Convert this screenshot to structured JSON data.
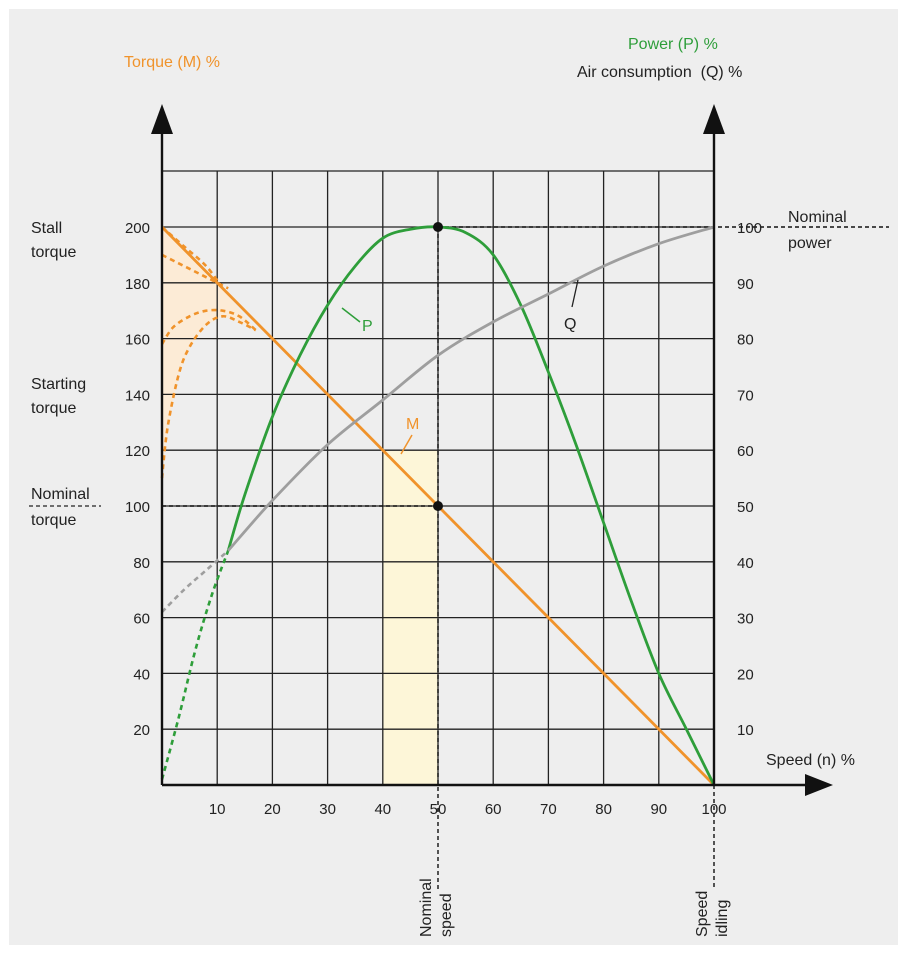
{
  "chart_data": {
    "type": "line",
    "title": "",
    "xlabel": "Speed (n) %",
    "ylabel_left": "Torque (M) %",
    "ylabel_right_1": "Power (P) %",
    "ylabel_right_2": "Air consumption  (Q) %",
    "xlim": [
      0,
      100
    ],
    "ylim_left": [
      0,
      200
    ],
    "ylim_right": [
      0,
      100
    ],
    "x_ticks": [
      10,
      20,
      30,
      40,
      50,
      60,
      70,
      80,
      90,
      100
    ],
    "y_left_ticks": [
      20,
      40,
      60,
      80,
      100,
      120,
      140,
      160,
      180,
      200
    ],
    "y_right_ticks": [
      10,
      20,
      30,
      40,
      50,
      60,
      70,
      80,
      90,
      100
    ],
    "grid": true,
    "colors": {
      "torque": "#f0932b",
      "power": "#2e9e3a",
      "air": "#9e9e9e",
      "points": "#111111",
      "axis": "#111111",
      "stall_band": "#fcebd6",
      "nominal_band": "#fdf6d8",
      "left_label": "#f0932b",
      "power_label": "#2e9e3a"
    },
    "series": [
      {
        "name": "M",
        "axis": "left",
        "x": [
          0,
          100
        ],
        "y": [
          200,
          0
        ]
      },
      {
        "name": "P",
        "axis": "right",
        "x": [
          12,
          15,
          20,
          25,
          30,
          35,
          40,
          45,
          50,
          55,
          60,
          65,
          70,
          75,
          80,
          85,
          90,
          95,
          100
        ],
        "y": [
          42,
          52,
          66,
          77,
          86,
          93,
          98,
          99.6,
          100,
          99,
          95,
          86,
          74,
          61,
          47,
          33,
          20,
          10,
          0
        ]
      },
      {
        "name": "Q",
        "axis": "right",
        "x": [
          12,
          20,
          30,
          40,
          50,
          60,
          70,
          80,
          90,
          100
        ],
        "y": [
          42,
          51,
          61,
          69,
          77,
          83,
          88,
          93,
          97,
          100
        ]
      }
    ],
    "dashed_segments": [
      {
        "series": "P",
        "x": [
          0,
          3,
          6,
          9,
          12
        ],
        "y": [
          1,
          12,
          24,
          34,
          42
        ]
      },
      {
        "series": "Q",
        "x": [
          0,
          4,
          8,
          12
        ],
        "y": [
          31,
          35,
          38.5,
          42
        ]
      },
      {
        "series": "M",
        "x": [
          0,
          4,
          8,
          11
        ],
        "y": [
          200,
          193,
          186,
          178
        ]
      },
      {
        "series": "M",
        "x": [
          0,
          3,
          6,
          9,
          12
        ],
        "y": [
          190,
          187,
          184,
          181,
          178
        ]
      },
      {
        "series": "M",
        "x": [
          0,
          2,
          5,
          8,
          11,
          14,
          17
        ],
        "y": [
          158,
          164,
          168,
          170,
          170,
          168,
          163
        ]
      },
      {
        "series": "M",
        "x": [
          0,
          1,
          3,
          5,
          8,
          11,
          14,
          17
        ],
        "y": [
          110,
          128,
          147,
          157,
          165,
          168,
          166,
          163
        ]
      }
    ],
    "points": [
      {
        "x": 50,
        "y": 100,
        "axis": "right",
        "label": ""
      },
      {
        "x": 50,
        "y": 100,
        "axis": "left",
        "label": ""
      }
    ],
    "annotations": {
      "series_labels": {
        "P": "P",
        "Q": "Q",
        "M": "M"
      },
      "stall_torque": [
        "Stall",
        "torque"
      ],
      "starting_torque": [
        "Starting",
        "torque"
      ],
      "nominal_torque": [
        "Nominal",
        "torque"
      ],
      "nominal_power": [
        "Nominal",
        "power"
      ],
      "nominal_speed": [
        "Nominal",
        "speed"
      ],
      "speed_idling": [
        "Speed",
        "idling"
      ]
    },
    "nominal_speed_band": [
      40,
      50
    ]
  }
}
